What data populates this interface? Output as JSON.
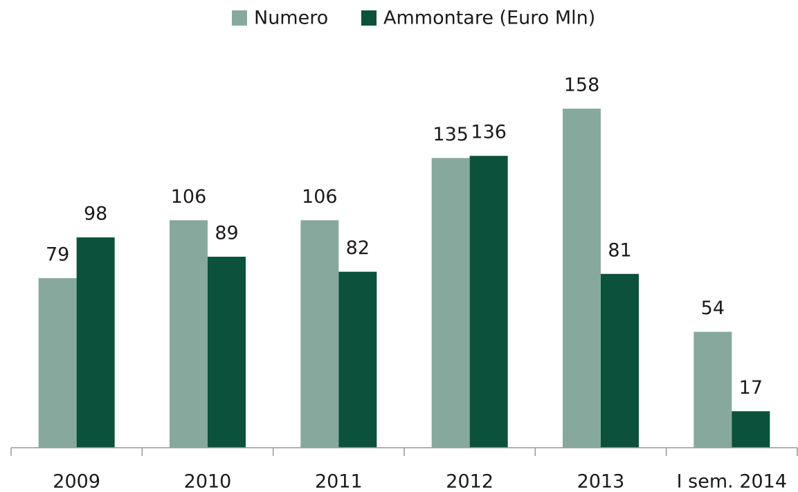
{
  "chart_data": {
    "type": "bar",
    "categories": [
      "2009",
      "2010",
      "2011",
      "2012",
      "2013",
      "I sem. 2014"
    ],
    "series": [
      {
        "name": "Numero",
        "color": "#87a99d",
        "values": [
          79,
          106,
          106,
          135,
          158,
          54
        ]
      },
      {
        "name": "Ammontare (Euro Mln)",
        "color": "#0b513b",
        "values": [
          98,
          89,
          82,
          136,
          81,
          17
        ]
      }
    ],
    "legend": "top"
  }
}
